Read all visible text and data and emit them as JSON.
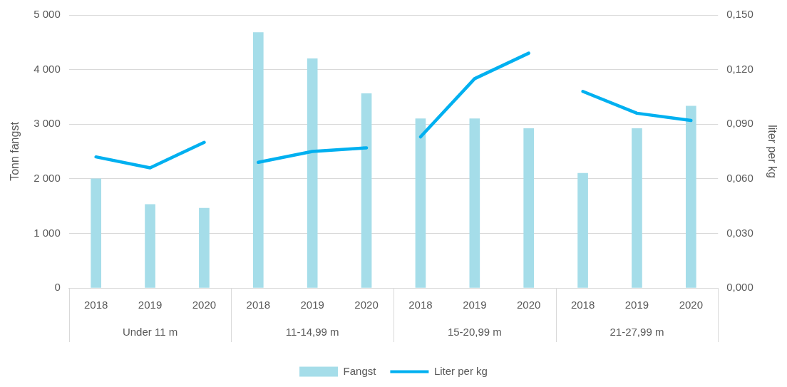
{
  "chart_data": {
    "type": "bar",
    "ylabel": "Tonn fangst",
    "y2label": "liter per kg",
    "categories": [
      "2018",
      "2019",
      "2020",
      "2018",
      "2019",
      "2020",
      "2018",
      "2019",
      "2020",
      "2018",
      "2019",
      "2020"
    ],
    "annotations": [
      "Under 11 m",
      "11-14,99 m",
      "15-20,99 m",
      "21-27,99 m"
    ],
    "series": [
      {
        "name": "Fangst",
        "color": "#a5dde9",
        "values": [
          2000,
          1530,
          1460,
          4680,
          4200,
          3560,
          3100,
          3100,
          2920,
          2100,
          2920,
          3330
        ]
      },
      {
        "name": "Liter per kg",
        "type": "line",
        "axis": "y2",
        "color": "#00b0f0",
        "values": [
          0.072,
          0.066,
          0.08,
          null,
          null,
          null,
          null,
          null,
          null,
          null,
          null,
          null
        ]
      },
      {
        "type": "line",
        "axis": "y2",
        "color": "#00b0f0",
        "values": [
          null,
          null,
          null,
          0.069,
          0.075,
          0.077,
          null,
          null,
          null,
          null,
          null,
          null
        ]
      },
      {
        "type": "line",
        "axis": "y2",
        "color": "#00b0f0",
        "values": [
          null,
          null,
          null,
          null,
          null,
          null,
          0.083,
          0.115,
          0.129,
          null,
          null,
          null
        ]
      },
      {
        "type": "line",
        "axis": "y2",
        "color": "#00b0f0",
        "values": [
          null,
          null,
          null,
          null,
          null,
          null,
          null,
          null,
          null,
          0.108,
          0.096,
          0.092
        ]
      }
    ],
    "ylim": [
      0,
      5000
    ],
    "yticks": [
      {
        "value": 0,
        "label": "0"
      },
      {
        "value": 1000,
        "label": "1 000"
      },
      {
        "value": 2000,
        "label": "2 000"
      },
      {
        "value": 3000,
        "label": "3 000"
      },
      {
        "value": 4000,
        "label": "4 000"
      },
      {
        "value": 5000,
        "label": "5 000"
      }
    ],
    "y2lim": [
      0,
      0.15
    ],
    "y2ticks": [
      {
        "value": 0,
        "label": "0,000"
      },
      {
        "value": 0.03,
        "label": "0,030"
      },
      {
        "value": 0.06,
        "label": "0,060"
      },
      {
        "value": 0.09,
        "label": "0,090"
      },
      {
        "value": 0.12,
        "label": "0,120"
      },
      {
        "value": 0.15,
        "label": "0,150"
      }
    ],
    "grid": "y",
    "legend": "bottom",
    "marker": "none"
  }
}
